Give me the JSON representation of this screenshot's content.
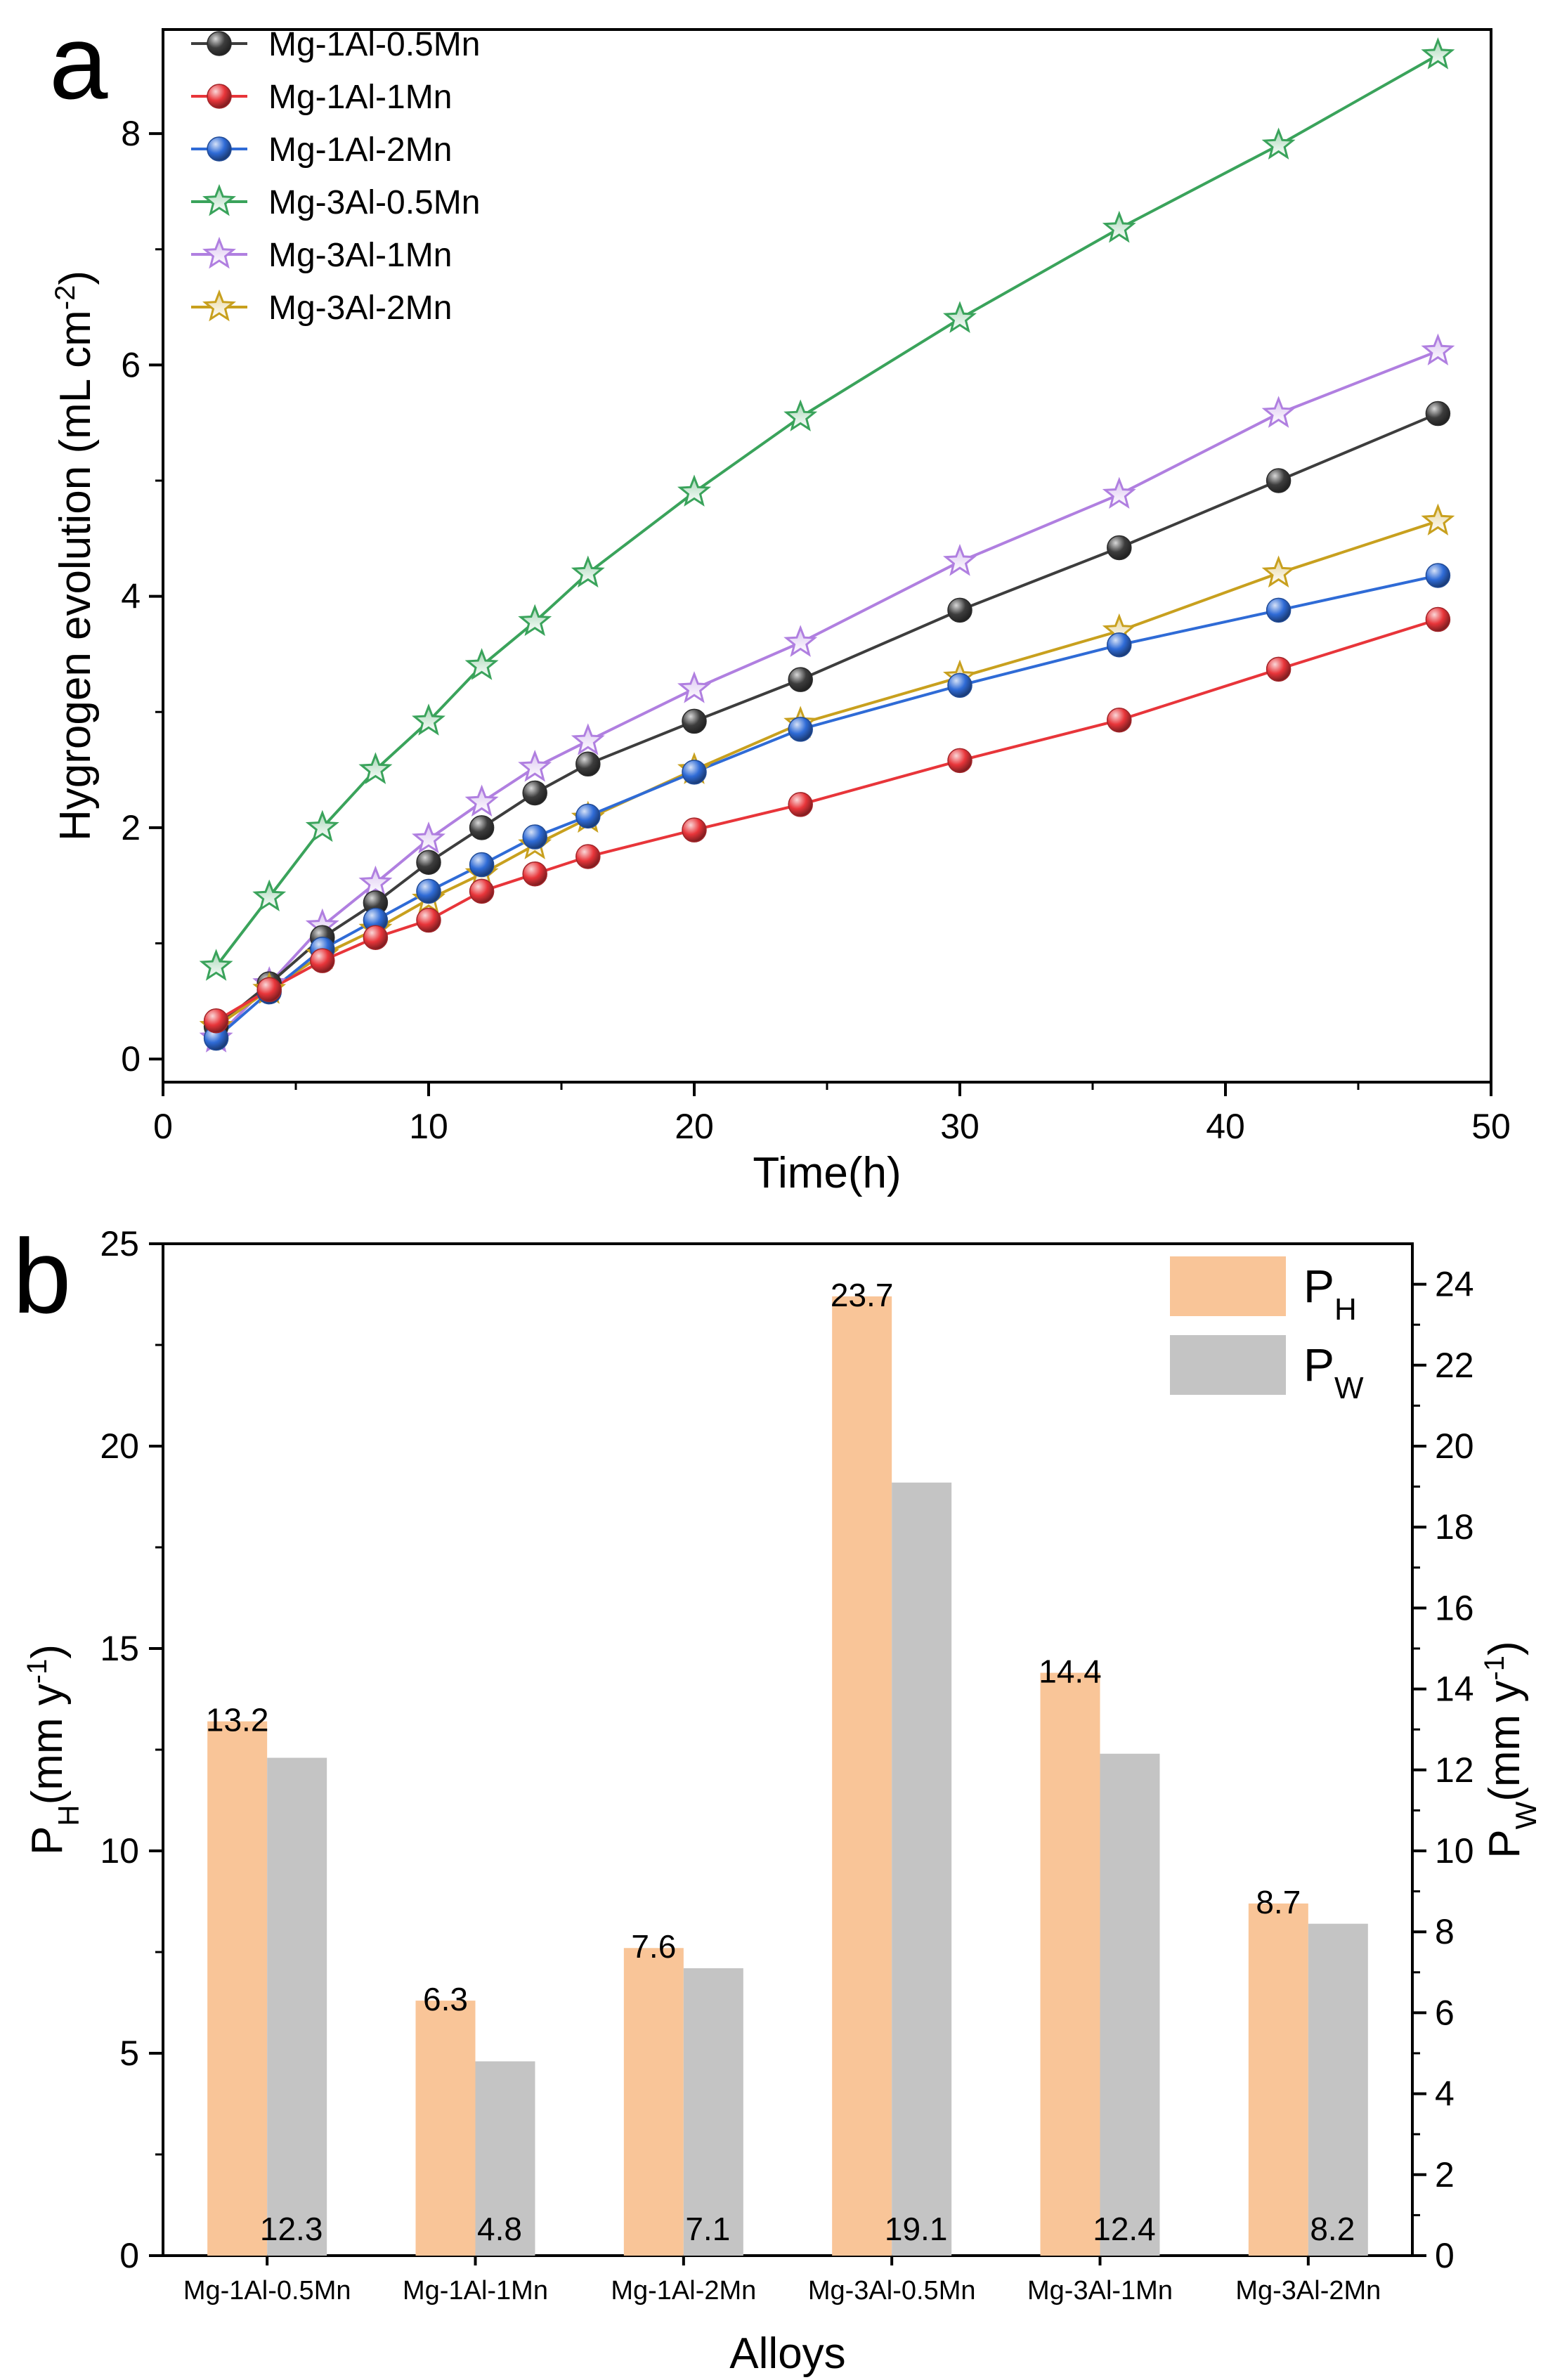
{
  "chart_data": [
    {
      "panel_label": "a",
      "type": "line",
      "xlabel": "Time(h)",
      "ylabel_main": "Hygrogen evolution (mL cm",
      "ylabel_sup": "-2",
      "ylabel_close": ")",
      "xlim": [
        0,
        50
      ],
      "ylim": [
        -0.2,
        8.9
      ],
      "xticks": [
        0,
        10,
        20,
        30,
        40,
        50
      ],
      "yticks": [
        0,
        2,
        4,
        6,
        8
      ],
      "x": [
        2,
        4,
        6,
        8,
        10,
        12,
        14,
        16,
        20,
        24,
        30,
        36,
        42,
        48
      ],
      "legend_position": "top-left",
      "series": [
        {
          "name": "Mg-1Al-0.5Mn",
          "marker": "sphere",
          "color": "#3d3d3d",
          "values": [
            0.28,
            0.65,
            1.05,
            1.35,
            1.7,
            2.0,
            2.3,
            2.55,
            2.92,
            3.28,
            3.88,
            4.42,
            5.0,
            5.58
          ]
        },
        {
          "name": "Mg-1Al-1Mn",
          "marker": "sphere",
          "color": "#e8353a",
          "values": [
            0.33,
            0.6,
            0.85,
            1.05,
            1.2,
            1.45,
            1.6,
            1.75,
            1.98,
            2.2,
            2.58,
            2.93,
            3.37,
            3.8
          ]
        },
        {
          "name": "Mg-1Al-2Mn",
          "marker": "sphere",
          "color": "#2f6bd6",
          "values": [
            0.18,
            0.58,
            0.95,
            1.2,
            1.45,
            1.68,
            1.92,
            2.1,
            2.48,
            2.85,
            3.23,
            3.58,
            3.88,
            4.18
          ]
        },
        {
          "name": "Mg-3Al-0.5Mn",
          "marker": "star",
          "color": "#3aa35b",
          "values": [
            0.8,
            1.4,
            2.0,
            2.5,
            2.92,
            3.4,
            3.78,
            4.2,
            4.9,
            5.55,
            6.4,
            7.18,
            7.9,
            8.68
          ]
        },
        {
          "name": "Mg-3Al-1Mn",
          "marker": "star",
          "color": "#b07fe0",
          "values": [
            0.18,
            0.65,
            1.15,
            1.52,
            1.9,
            2.22,
            2.52,
            2.75,
            3.2,
            3.6,
            4.3,
            4.88,
            5.58,
            6.12
          ]
        },
        {
          "name": "Mg-3Al-2Mn",
          "marker": "star",
          "color": "#c8a01e",
          "values": [
            0.28,
            0.6,
            0.9,
            1.12,
            1.38,
            1.6,
            1.85,
            2.08,
            2.5,
            2.9,
            3.3,
            3.7,
            4.2,
            4.65
          ]
        }
      ]
    },
    {
      "panel_label": "b",
      "type": "bar",
      "xlabel": "Alloys",
      "categories": [
        "Mg-1Al-0.5Mn",
        "Mg-1Al-1Mn",
        "Mg-1Al-2Mn",
        "Mg-3Al-0.5Mn",
        "Mg-3Al-1Mn",
        "Mg-3Al-2Mn"
      ],
      "left_axis": {
        "label_main": "P",
        "label_sub": "H",
        "label_rest": "(mm y",
        "label_sup": "-1",
        "label_close": ")",
        "ylim": [
          0,
          25
        ],
        "ticks": [
          0,
          5,
          10,
          15,
          20,
          25
        ]
      },
      "right_axis": {
        "label_main": "P",
        "label_sub": "W",
        "label_rest": "(mm y",
        "label_sup": "-1",
        "label_close": ")",
        "ylim": [
          0,
          25
        ],
        "ticks": [
          0,
          2,
          4,
          6,
          8,
          10,
          12,
          14,
          16,
          18,
          20,
          22,
          24
        ]
      },
      "legend_position": "top-right",
      "series": [
        {
          "name": "P",
          "name_sub": "H",
          "axis": "left",
          "color": "#f9c598",
          "values": [
            13.2,
            6.3,
            7.6,
            23.7,
            14.4,
            8.7
          ],
          "labels": [
            "13.2",
            "6.3",
            "7.6",
            "23.7",
            "14.4",
            "8.7"
          ]
        },
        {
          "name": "P",
          "name_sub": "W",
          "axis": "right",
          "color": "#c4c4c4",
          "values": [
            12.3,
            4.8,
            7.1,
            19.1,
            12.4,
            8.2
          ],
          "labels": [
            "12.3",
            "4.8",
            "7.1",
            "19.1",
            "12.4",
            "8.2"
          ]
        }
      ]
    }
  ]
}
